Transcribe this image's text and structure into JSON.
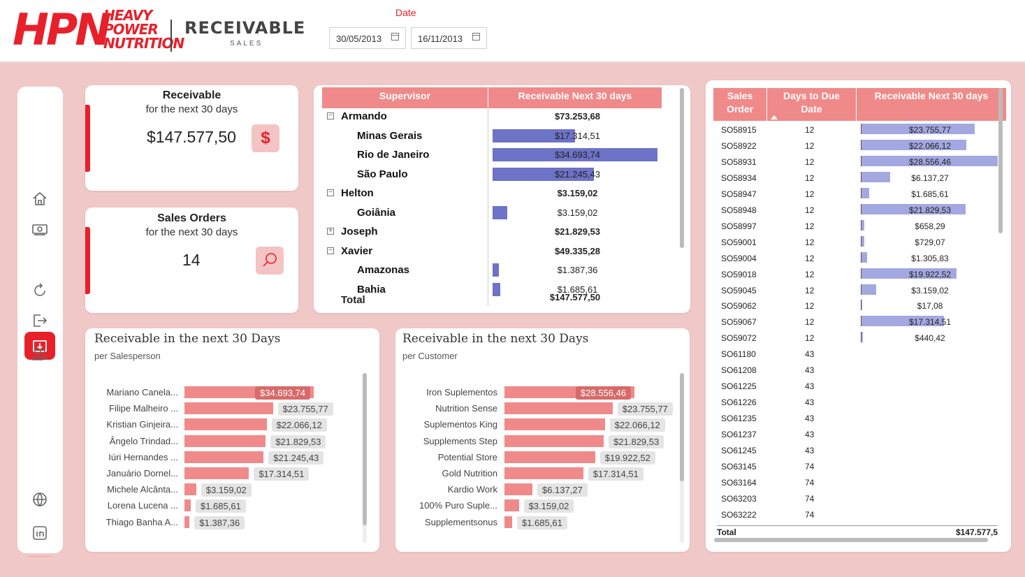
{
  "header": {
    "logo_main": "HPN",
    "logo_sub": [
      "HEAVY",
      "POWER",
      "NUTRITION"
    ],
    "page_title": "RECEIVABLE",
    "page_subtitle": "SALES",
    "date_label": "Date",
    "date_from": "30/05/2013",
    "date_to": "16/11/2013"
  },
  "sidebar": {
    "icons": [
      "home-icon",
      "money-icon",
      "receivable-icon",
      "refresh-icon",
      "logout-icon",
      "users-icon",
      "globe-icon",
      "linkedin-icon"
    ],
    "active": "receivable-icon"
  },
  "kpis": [
    {
      "title": "Receivable",
      "subtitle": "for the next 30 days",
      "value": "$147.577,50",
      "badge": "$"
    },
    {
      "title": "Sales Orders",
      "subtitle": "for the next 30 days",
      "value": "14",
      "badge": "search"
    }
  ],
  "matrix": {
    "headers": [
      "Supervisor",
      "Receivable Next 30 days"
    ],
    "rows": [
      {
        "label": "Armando",
        "value": "$73.253,68",
        "level": 0,
        "toggle": "⊟",
        "bar": 0
      },
      {
        "label": "Minas Gerais",
        "value": "$17.314,51",
        "level": 1,
        "bar": 0.4993
      },
      {
        "label": "Rio de Janeiro",
        "value": "$34.693,74",
        "level": 1,
        "bar": 1.0
      },
      {
        "label": "São Paulo",
        "value": "$21.245,43",
        "level": 1,
        "bar": 0.6124
      },
      {
        "label": "Helton",
        "value": "$3.159,02",
        "level": 0,
        "toggle": "⊟",
        "bar": 0
      },
      {
        "label": "Goiânia",
        "value": "$3.159,02",
        "level": 1,
        "bar": 0.0911
      },
      {
        "label": "Joseph",
        "value": "$21.829,53",
        "level": 0,
        "toggle": "⊞",
        "bar": 0
      },
      {
        "label": "Xavier",
        "value": "$49.335,28",
        "level": 0,
        "toggle": "⊟",
        "bar": 0
      },
      {
        "label": "Amazonas",
        "value": "$1.387,36",
        "level": 1,
        "bar": 0.04
      },
      {
        "label": "Bahia",
        "value": "$1.685,61",
        "level": 1,
        "bar": 0.0486
      }
    ],
    "total_label": "Total",
    "total_value": "$147.577,50"
  },
  "chart_salesperson": {
    "title": "Receivable in the next 30 Days",
    "subtitle": "per Salesperson"
  },
  "chart_customer": {
    "title": "Receivable in the next 30 Days",
    "subtitle": "per Customer"
  },
  "chart_data": [
    {
      "type": "bar",
      "orientation": "horizontal",
      "title": "Receivable in the next 30 Days",
      "subtitle": "per Salesperson",
      "categories": [
        "Mariano Canela...",
        "Filipe Malheiro ...",
        "Kristian Ginjeira...",
        "Ângelo Trindad...",
        "Iúri Hernandes ...",
        "Januário Dornel...",
        "Michele Alcânta...",
        "Lorena Lucena ...",
        "Thiago Banha A..."
      ],
      "values": [
        34693.74,
        23755.77,
        22066.12,
        21829.53,
        21245.43,
        17314.51,
        3159.02,
        1685.61,
        1387.36
      ],
      "labels": [
        "$34.693,74",
        "$23.755,77",
        "$22.066,12",
        "$21.829,53",
        "$21.245,43",
        "$17.314,51",
        "$3.159,02",
        "$1.685,61",
        "$1.387,36"
      ],
      "color": "#f08a8a"
    },
    {
      "type": "bar",
      "orientation": "horizontal",
      "title": "Receivable in the next 30 Days",
      "subtitle": "per Customer",
      "categories": [
        "Iron Suplementos",
        "Nutrition Sense",
        "Suplementos King",
        "Supplements Step",
        "Potential Store",
        "Gold Nutrition",
        "Kardio Work",
        "100% Puro Suple...",
        "Supplementsonus"
      ],
      "values": [
        28556.46,
        23755.77,
        22066.12,
        21829.53,
        19922.52,
        17314.51,
        6137.27,
        3159.02,
        1685.61
      ],
      "labels": [
        "$28.556,46",
        "$23.755,77",
        "$22.066,12",
        "$21.829,53",
        "$19.922,52",
        "$17.314,51",
        "$6.137,27",
        "$3.159,02",
        "$1.685,61"
      ],
      "color": "#f08a8a"
    }
  ],
  "orders_table": {
    "headers": [
      "Sales\nOrder",
      "Days to Due\nDate",
      "Receivable Next 30 days"
    ],
    "rows": [
      {
        "order": "SO58915",
        "days": "12",
        "value": "$23.755,77",
        "amount": 23755.77
      },
      {
        "order": "SO58922",
        "days": "12",
        "value": "$22.066,12",
        "amount": 22066.12
      },
      {
        "order": "SO58931",
        "days": "12",
        "value": "$28.556,46",
        "amount": 28556.46
      },
      {
        "order": "SO58934",
        "days": "12",
        "value": "$6.137,27",
        "amount": 6137.27
      },
      {
        "order": "SO58947",
        "days": "12",
        "value": "$1.685,61",
        "amount": 1685.61
      },
      {
        "order": "SO58948",
        "days": "12",
        "value": "$21.829,53",
        "amount": 21829.53
      },
      {
        "order": "SO58997",
        "days": "12",
        "value": "$658,29",
        "amount": 658.29
      },
      {
        "order": "SO59001",
        "days": "12",
        "value": "$729,07",
        "amount": 729.07
      },
      {
        "order": "SO59004",
        "days": "12",
        "value": "$1.305,83",
        "amount": 1305.83
      },
      {
        "order": "SO59018",
        "days": "12",
        "value": "$19.922,52",
        "amount": 19922.52
      },
      {
        "order": "SO59045",
        "days": "12",
        "value": "$3.159,02",
        "amount": 3159.02
      },
      {
        "order": "SO59062",
        "days": "12",
        "value": "$17,08",
        "amount": 17.08
      },
      {
        "order": "SO59067",
        "days": "12",
        "value": "$17.314,51",
        "amount": 17314.51
      },
      {
        "order": "SO59072",
        "days": "12",
        "value": "$440,42",
        "amount": 440.42
      },
      {
        "order": "SO61180",
        "days": "43",
        "value": "",
        "amount": 0
      },
      {
        "order": "SO61208",
        "days": "43",
        "value": "",
        "amount": 0
      },
      {
        "order": "SO61225",
        "days": "43",
        "value": "",
        "amount": 0
      },
      {
        "order": "SO61226",
        "days": "43",
        "value": "",
        "amount": 0
      },
      {
        "order": "SO61235",
        "days": "43",
        "value": "",
        "amount": 0
      },
      {
        "order": "SO61237",
        "days": "43",
        "value": "",
        "amount": 0
      },
      {
        "order": "SO61245",
        "days": "43",
        "value": "",
        "amount": 0
      },
      {
        "order": "SO63145",
        "days": "74",
        "value": "",
        "amount": 0
      },
      {
        "order": "SO63164",
        "days": "74",
        "value": "",
        "amount": 0
      },
      {
        "order": "SO63203",
        "days": "74",
        "value": "",
        "amount": 0
      },
      {
        "order": "SO63222",
        "days": "74",
        "value": "",
        "amount": 0
      }
    ],
    "total_label": "Total",
    "total_value": "$147.577,5"
  },
  "colors": {
    "accent": "#e8202a",
    "header_fill": "#f08a8a",
    "background": "#f0c8c8",
    "matrix_bar": "#6d73c7",
    "table_bar": "#a3a8e0"
  }
}
